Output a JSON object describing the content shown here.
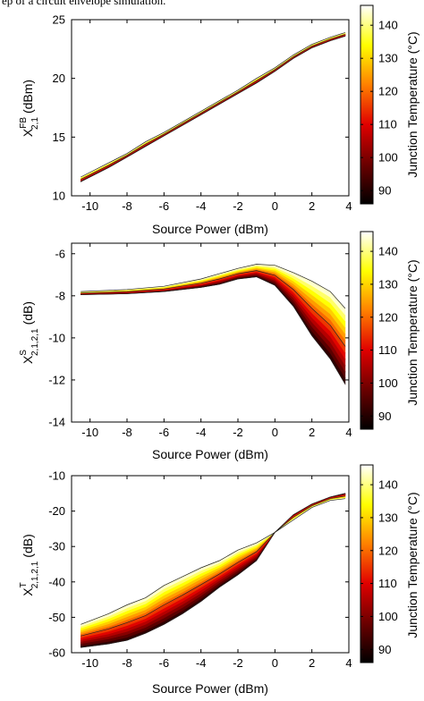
{
  "caption": "ep of a circuit envelope simulation.",
  "colormap": [
    "#000000",
    "#6b0000",
    "#e00000",
    "#ff8000",
    "#ffff00",
    "#ffffff"
  ],
  "chart_data": [
    {
      "type": "line",
      "ylabel_main": "X",
      "ylabel_sup": "FB",
      "ylabel_sub": "2,1",
      "ylabel_unit": "(dBm)",
      "xlabel": "Source Power (dBm)",
      "xlim": [
        -11,
        4
      ],
      "ylim": [
        10,
        25
      ],
      "xticks": [
        -10,
        -8,
        -6,
        -4,
        -2,
        0,
        2,
        4
      ],
      "yticks": [
        10,
        15,
        20,
        25
      ],
      "x": [
        -10.5,
        -9,
        -8,
        -7,
        -6,
        -5,
        -4,
        -3,
        -2,
        -1,
        0,
        1,
        2,
        3,
        3.8
      ],
      "band_low": [
        11.2,
        12.4,
        13.3,
        14.2,
        15.1,
        16.0,
        16.9,
        17.8,
        18.7,
        19.6,
        20.6,
        21.7,
        22.6,
        23.2,
        23.6
      ],
      "band_high": [
        11.6,
        12.8,
        13.6,
        14.6,
        15.4,
        16.3,
        17.2,
        18.1,
        19.0,
        20.0,
        20.9,
        22.0,
        22.9,
        23.5,
        23.9
      ],
      "colorbar": {
        "label": "Junction Temperature (°C)",
        "range": [
          86,
          146
        ],
        "ticks": [
          90,
          100,
          110,
          120,
          130,
          140
        ]
      }
    },
    {
      "type": "line",
      "ylabel_main": "X",
      "ylabel_sup": "S",
      "ylabel_sub": "2,1,2,1",
      "ylabel_unit": "(dB)",
      "xlabel": "Source Power (dBm)",
      "xlim": [
        -11,
        4
      ],
      "ylim": [
        -14,
        -5.5
      ],
      "xticks": [
        -10,
        -8,
        -6,
        -4,
        -2,
        0,
        2,
        4
      ],
      "yticks": [
        -14,
        -12,
        -10,
        -8,
        -6
      ],
      "x": [
        -10.5,
        -8,
        -6,
        -4,
        -3,
        -2,
        -1,
        0,
        1,
        2,
        3,
        3.8
      ],
      "band_low": [
        -7.95,
        -7.9,
        -7.8,
        -7.6,
        -7.45,
        -7.2,
        -7.1,
        -7.5,
        -8.5,
        -9.9,
        -11.0,
        -12.2
      ],
      "band_high": [
        -7.8,
        -7.7,
        -7.55,
        -7.2,
        -6.95,
        -6.7,
        -6.5,
        -6.55,
        -6.9,
        -7.3,
        -7.8,
        -8.6
      ],
      "colorbar": {
        "label": "Junction Temperature (°C)",
        "range": [
          86,
          146
        ],
        "ticks": [
          90,
          100,
          110,
          120,
          130,
          140
        ]
      }
    },
    {
      "type": "line",
      "ylabel_main": "X",
      "ylabel_sup": "T",
      "ylabel_sub": "2,1,2,1",
      "ylabel_unit": "(dB)",
      "xlabel": "Source Power (dBm)",
      "xlim": [
        -11,
        4
      ],
      "ylim": [
        -60,
        -10
      ],
      "xticks": [
        -10,
        -8,
        -6,
        -4,
        -2,
        0,
        2,
        4
      ],
      "yticks": [
        -60,
        -50,
        -40,
        -30,
        -20,
        -10
      ],
      "x": [
        -10.5,
        -9,
        -8,
        -7,
        -6,
        -5,
        -4,
        -3,
        -2,
        -1,
        0,
        1,
        2,
        3,
        3.8
      ],
      "band_low": [
        -58.5,
        -57.5,
        -56.5,
        -54.5,
        -52.0,
        -49.0,
        -45.5,
        -41.5,
        -38.0,
        -34.0,
        -26.0,
        -21.0,
        -18.0,
        -16.0,
        -15.0
      ],
      "band_high": [
        -52.0,
        -49.0,
        -46.5,
        -44.5,
        -41.0,
        -38.5,
        -36.0,
        -34.0,
        -31.0,
        -29.0,
        -26.0,
        -22.5,
        -19.0,
        -17.0,
        -16.5
      ],
      "colorbar": {
        "label": "Junction Temperature (°C)",
        "range": [
          86,
          146
        ],
        "ticks": [
          90,
          100,
          110,
          120,
          130,
          140
        ]
      }
    }
  ]
}
